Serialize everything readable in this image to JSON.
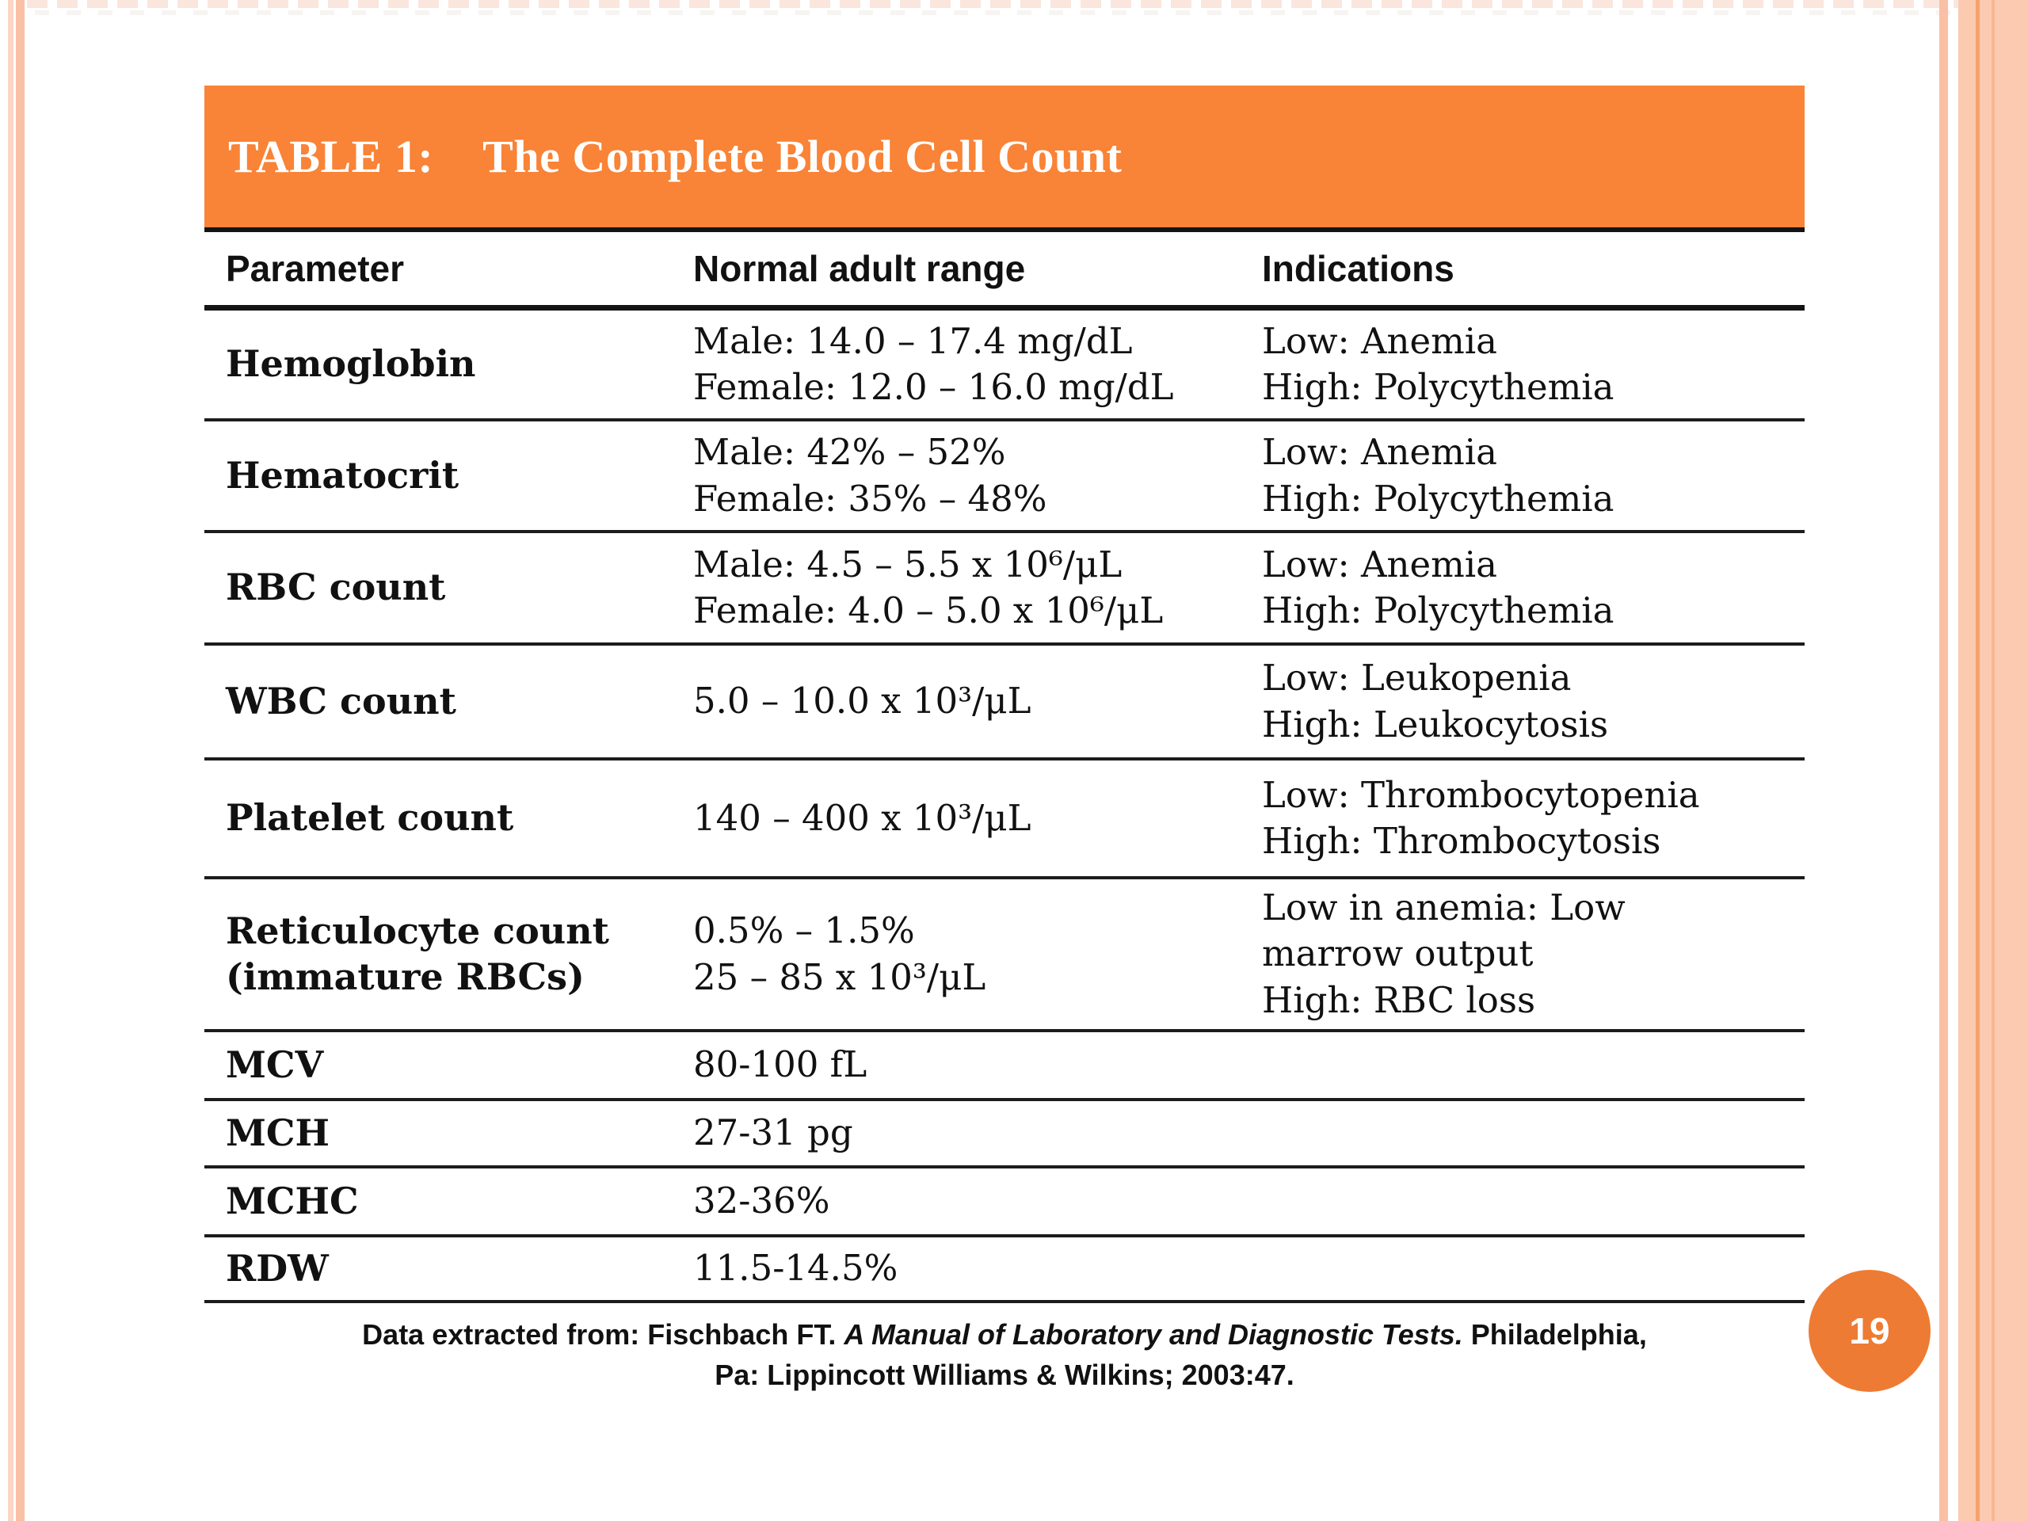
{
  "colors": {
    "accent_orange": "#f98336",
    "circle_orange": "#ee7b33",
    "peach": "#f9c0a5",
    "peach_light": "#fbd6c3",
    "peach_band": "#fbcab0",
    "peach_dark": "#f6a26f"
  },
  "slide": {
    "page_number": "19"
  },
  "table": {
    "title_label": "TABLE 1:",
    "title_text": "The Complete Blood Cell Count",
    "columns": [
      "Parameter",
      "Normal adult range",
      "Indications"
    ],
    "rows": [
      {
        "parameter": [
          "Hemoglobin"
        ],
        "range": [
          "Male: 14.0 – 17.4 mg/dL",
          "Female: 12.0 – 16.0 mg/dL"
        ],
        "indications": [
          "Low: Anemia",
          "High: Polycythemia"
        ]
      },
      {
        "parameter": [
          "Hematocrit"
        ],
        "range": [
          "Male: 42% – 52%",
          "Female: 35% – 48%"
        ],
        "indications": [
          "Low: Anemia",
          "High: Polycythemia"
        ]
      },
      {
        "parameter": [
          "RBC count"
        ],
        "range": [
          "Male: 4.5 – 5.5 x 10⁶/μL",
          "Female: 4.0 – 5.0 x 10⁶/μL"
        ],
        "indications": [
          "Low: Anemia",
          "High: Polycythemia"
        ]
      },
      {
        "parameter": [
          "WBC count"
        ],
        "range": [
          "5.0 – 10.0 x 10³/μL"
        ],
        "indications": [
          "Low: Leukopenia",
          "High: Leukocytosis"
        ]
      },
      {
        "parameter": [
          "Platelet count"
        ],
        "range": [
          "140 – 400 x 10³/μL"
        ],
        "indications": [
          "Low: Thrombocytopenia",
          "High: Thrombocytosis"
        ]
      },
      {
        "parameter": [
          "Reticulocyte count",
          "(immature RBCs)"
        ],
        "range": [
          "0.5% – 1.5%",
          "25 – 85 x 10³/μL"
        ],
        "indications": [
          "Low in anemia: Low",
          "marrow output",
          "High: RBC loss"
        ]
      },
      {
        "parameter": [
          "MCV"
        ],
        "range": [
          "80-100 fL"
        ],
        "indications": []
      },
      {
        "parameter": [
          "MCH"
        ],
        "range": [
          "27-31 pg"
        ],
        "indications": []
      },
      {
        "parameter": [
          "MCHC"
        ],
        "range": [
          "32-36%"
        ],
        "indications": []
      },
      {
        "parameter": [
          "RDW"
        ],
        "range": [
          "11.5-14.5%"
        ],
        "indications": []
      }
    ],
    "footnote": {
      "line1_normal1": "Data extracted from: Fischbach FT. ",
      "line1_italic": "A Manual of Laboratory and Diagnostic Tests.",
      "line1_normal2": " Philadelphia,",
      "line2": "Pa: Lippincott Williams & Wilkins; 2003:47."
    }
  }
}
